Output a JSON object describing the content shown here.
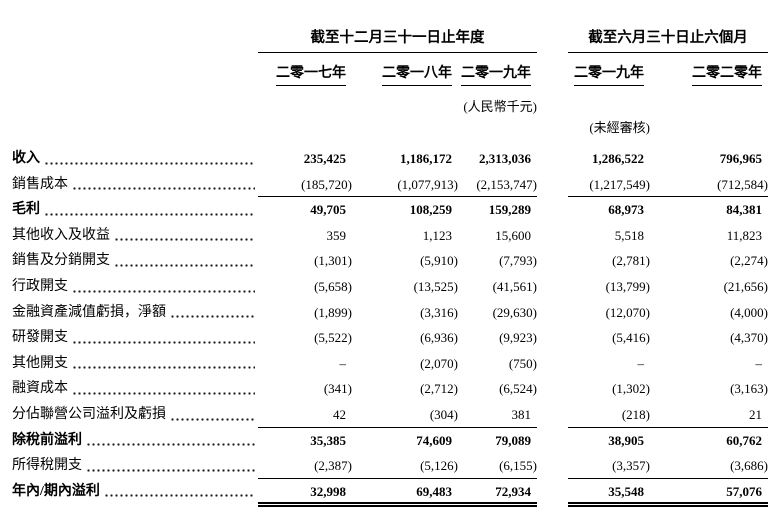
{
  "page": {
    "background": "#ffffff",
    "text_color": "#000000"
  },
  "table": {
    "groups": [
      {
        "title": "截至十二月三十一日止年度",
        "years": [
          "二零一七年",
          "二零一八年",
          "二零一九年"
        ]
      },
      {
        "title": "截至六月三十日止六個月",
        "years": [
          "二零一九年",
          "二零二零年"
        ]
      }
    ],
    "unit_note": "(人民幣千元)",
    "unaudited_note": "(未經審核)",
    "rows": [
      {
        "label": "收入",
        "bold": true,
        "underline": "none",
        "values": [
          "235,425",
          "1,186,172",
          "2,313,036",
          "1,286,522",
          "796,965"
        ]
      },
      {
        "label": "銷售成本",
        "bold": false,
        "underline": "single",
        "values": [
          "(185,720)",
          "(1,077,913)",
          "(2,153,747)",
          "(1,217,549)",
          "(712,584)"
        ]
      },
      {
        "label": "毛利",
        "bold": true,
        "underline": "none",
        "values": [
          "49,705",
          "108,259",
          "159,289",
          "68,973",
          "84,381"
        ]
      },
      {
        "label": "其他收入及收益",
        "bold": false,
        "underline": "none",
        "values": [
          "359",
          "1,123",
          "15,600",
          "5,518",
          "11,823"
        ]
      },
      {
        "label": "銷售及分銷開支",
        "bold": false,
        "underline": "none",
        "values": [
          "(1,301)",
          "(5,910)",
          "(7,793)",
          "(2,781)",
          "(2,274)"
        ]
      },
      {
        "label": "行政開支",
        "bold": false,
        "underline": "none",
        "values": [
          "(5,658)",
          "(13,525)",
          "(41,561)",
          "(13,799)",
          "(21,656)"
        ]
      },
      {
        "label": "金融資產減值虧損，淨額",
        "bold": false,
        "underline": "none",
        "values": [
          "(1,899)",
          "(3,316)",
          "(29,630)",
          "(12,070)",
          "(4,000)"
        ]
      },
      {
        "label": "研發開支",
        "bold": false,
        "underline": "none",
        "values": [
          "(5,522)",
          "(6,936)",
          "(9,923)",
          "(5,416)",
          "(4,370)"
        ]
      },
      {
        "label": "其他開支",
        "bold": false,
        "underline": "none",
        "values": [
          "–",
          "(2,070)",
          "(750)",
          "–",
          "–"
        ]
      },
      {
        "label": "融資成本",
        "bold": false,
        "underline": "none",
        "values": [
          "(341)",
          "(2,712)",
          "(6,524)",
          "(1,302)",
          "(3,163)"
        ]
      },
      {
        "label": "分佔聯營公司溢利及虧損",
        "bold": false,
        "underline": "single",
        "values": [
          "42",
          "(304)",
          "381",
          "(218)",
          "21"
        ]
      },
      {
        "label": "除稅前溢利",
        "bold": true,
        "underline": "none",
        "values": [
          "35,385",
          "74,609",
          "79,089",
          "38,905",
          "60,762"
        ]
      },
      {
        "label": "所得稅開支",
        "bold": false,
        "underline": "single",
        "values": [
          "(2,387)",
          "(5,126)",
          "(6,155)",
          "(3,357)",
          "(3,686)"
        ]
      },
      {
        "label": "年內/期內溢利",
        "bold": true,
        "underline": "double",
        "values": [
          "32,998",
          "69,483",
          "72,934",
          "35,548",
          "57,076"
        ]
      }
    ]
  }
}
